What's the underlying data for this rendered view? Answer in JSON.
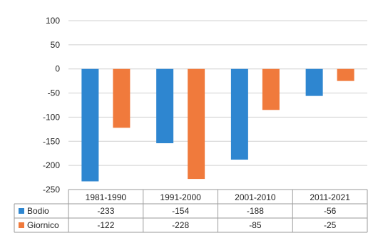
{
  "chart_data": {
    "type": "bar",
    "categories": [
      "1981-1990",
      "1991-2000",
      "2001-2010",
      "2011-2021"
    ],
    "series": [
      {
        "name": "Bodio",
        "values": [
          -233,
          -154,
          -188,
          -56
        ],
        "color": "#2E86D0"
      },
      {
        "name": "Giornico",
        "values": [
          -122,
          -228,
          -85,
          -25
        ],
        "color": "#F07A3C"
      }
    ],
    "value_labels": [
      [
        "-233",
        "-154",
        "-188",
        "-56"
      ],
      [
        "-122",
        "-228",
        "-85",
        "-25"
      ]
    ],
    "yticks": [
      100,
      50,
      0,
      -50,
      -100,
      -150,
      -200,
      -250
    ],
    "ylim": [
      -250,
      100
    ],
    "grid": true,
    "legend": "in-table-left",
    "title": "",
    "xlabel": "",
    "ylabel": ""
  }
}
